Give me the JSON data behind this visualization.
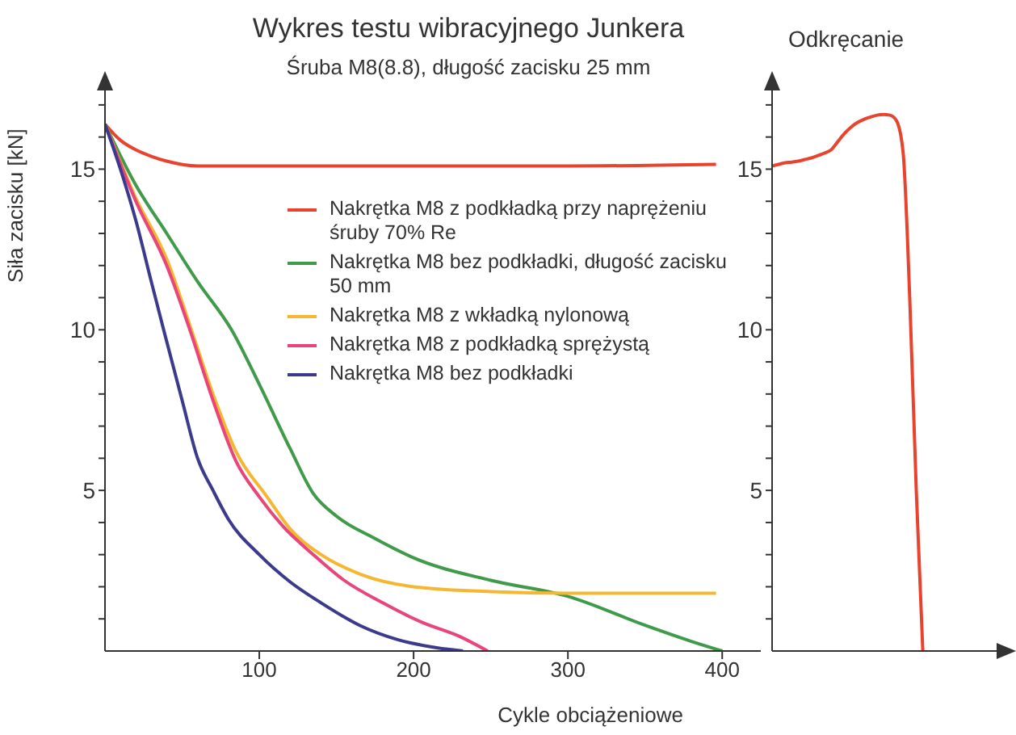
{
  "chart_data": [
    {
      "type": "line",
      "title": "Wykres testu wibracyjnego Junkera",
      "subtitle": "Śruba M8(8.8), długość zacisku 25 mm",
      "xlabel": "Cykle obciążeniowe",
      "ylabel": "Siła zacisku [kN]",
      "xlim": [
        0,
        425
      ],
      "xticks": [
        100,
        200,
        300,
        400
      ],
      "ylim": [
        0,
        17.5
      ],
      "yticks": [
        {
          "value": 1,
          "label": null
        },
        {
          "value": 2,
          "label": null
        },
        {
          "value": 3,
          "label": null
        },
        {
          "value": 4,
          "label": null
        },
        5,
        {
          "value": 6,
          "label": null
        },
        {
          "value": 7,
          "label": null
        },
        {
          "value": 8,
          "label": null
        },
        {
          "value": 9,
          "label": null
        },
        10,
        {
          "value": 11,
          "label": null
        },
        {
          "value": 12,
          "label": null
        },
        {
          "value": 13,
          "label": null
        },
        {
          "value": 14,
          "label": null
        },
        15,
        {
          "value": 16,
          "label": null
        },
        {
          "value": 17,
          "label": null
        }
      ],
      "legend": "top right",
      "marker": "none",
      "line_style": "solid",
      "series": [
        {
          "name": "Nakrętka M8 z podkładką przy naprężeniu śruby 70% Re",
          "color": "#e8432e",
          "x": [
            0,
            10,
            20,
            30,
            40,
            60,
            100,
            200,
            300,
            396
          ],
          "values": [
            16.4,
            15.9,
            15.6,
            15.4,
            15.25,
            15.1,
            15.1,
            15.1,
            15.1,
            15.15
          ]
        },
        {
          "name": "Nakrętka M8 bez podkładki, długość zacisku 50 mm",
          "color": "#3f9a4a",
          "x": [
            0,
            20,
            40,
            60,
            82,
            100,
            120,
            135,
            150,
            175,
            200,
            250,
            300,
            350,
            380,
            400
          ],
          "values": [
            16.4,
            14.5,
            13,
            11.5,
            10,
            8.3,
            6.3,
            4.9,
            4.2,
            3.5,
            2.9,
            2.2,
            1.7,
            0.8,
            0.3,
            0
          ]
        },
        {
          "name": "Nakrętka M8 z wkładką nylonową",
          "color": "#f5b731",
          "x": [
            0,
            20,
            40,
            56,
            70,
            85,
            105,
            120,
            140,
            165,
            200,
            250,
            300,
            396
          ],
          "values": [
            16.4,
            14.1,
            12.2,
            10,
            8,
            6.2,
            4.8,
            3.8,
            3,
            2.4,
            2,
            1.85,
            1.8,
            1.8
          ]
        },
        {
          "name": "Nakrętka M8 z podkładką sprężystą",
          "color": "#e8457a",
          "x": [
            0,
            20,
            40,
            55,
            70,
            85,
            100,
            115,
            135,
            155,
            180,
            205,
            230,
            248
          ],
          "values": [
            16.4,
            14,
            12,
            10,
            7.8,
            5.9,
            4.8,
            3.9,
            3,
            2.2,
            1.5,
            0.9,
            0.45,
            0
          ]
        },
        {
          "name": "Nakrętka M8 bez podkładki",
          "color": "#3b3a8c",
          "x": [
            0,
            10,
            20,
            30,
            38,
            50,
            60,
            70,
            80,
            100,
            120,
            140,
            165,
            190,
            215,
            232
          ],
          "values": [
            16.4,
            15,
            13.4,
            11.5,
            10,
            7.8,
            6,
            5,
            4.1,
            3,
            2.15,
            1.5,
            0.8,
            0.35,
            0.1,
            0
          ]
        }
      ]
    },
    {
      "type": "line",
      "title": "Odkręcanie",
      "tick_labels": "y",
      "marker": "none",
      "line_style": "solid",
      "categories": [
        null,
        null,
        null,
        null,
        null,
        null,
        null,
        null,
        null,
        null,
        null,
        null,
        null,
        null,
        null,
        null,
        null,
        null,
        null,
        null,
        null,
        null,
        null,
        null,
        null,
        null,
        null,
        null,
        null,
        null,
        null,
        null,
        null,
        null,
        null,
        null
      ],
      "ylim": [
        0,
        17.5
      ],
      "yticks": [
        {
          "value": 1,
          "label": null
        },
        {
          "value": 2,
          "label": null
        },
        {
          "value": 3,
          "label": null
        },
        {
          "value": 4,
          "label": null
        },
        5,
        {
          "value": 6,
          "label": null
        },
        {
          "value": 7,
          "label": null
        },
        {
          "value": 8,
          "label": null
        },
        {
          "value": 9,
          "label": null
        },
        10,
        {
          "value": 11,
          "label": null
        },
        {
          "value": 12,
          "label": null
        },
        {
          "value": 13,
          "label": null
        },
        {
          "value": 14,
          "label": null
        },
        15,
        {
          "value": 16,
          "label": null
        },
        {
          "value": 17,
          "label": null
        }
      ],
      "series": [
        {
          "color": "#e8432e",
          "values": [
            15.1,
            15.15,
            15.2,
            15.22,
            15.25,
            15.3,
            15.35,
            15.42,
            15.5,
            15.6,
            15.85,
            16.1,
            16.3,
            16.45,
            16.55,
            16.62,
            16.68,
            16.7,
            16.68,
            16.5,
            15.5,
            11,
            5,
            0,
            null,
            null,
            null,
            null,
            null,
            null,
            null,
            null,
            null,
            null,
            null,
            null
          ]
        }
      ]
    }
  ]
}
